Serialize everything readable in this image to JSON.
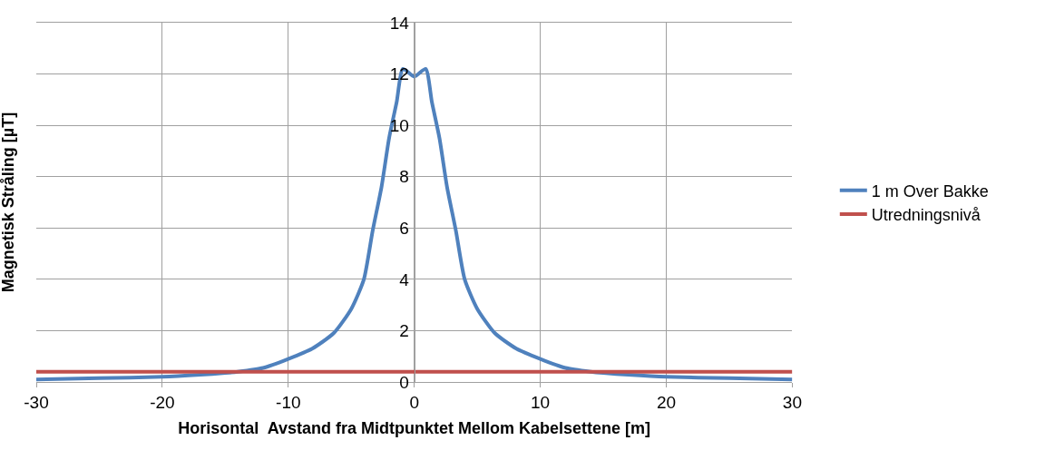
{
  "chart_data": {
    "type": "line",
    "xlabel": "Horisontal  Avstand fra Midtpunktet Mellom Kabelsettene [m]",
    "ylabel": "Magnetisk Stråling [µT]",
    "xlim": [
      -30,
      30
    ],
    "xticks": [
      -30,
      -20,
      -10,
      0,
      10,
      20,
      30
    ],
    "ylim": [
      0,
      14
    ],
    "yticks": [
      0,
      2,
      4,
      6,
      8,
      10,
      12,
      14
    ],
    "grid": true,
    "legend": "right",
    "marker": "none",
    "line_style": "solid",
    "series": [
      {
        "name": "1 m Over Bakke",
        "color": "#4f81bd",
        "x": [
          -30,
          -25,
          -20,
          -17,
          -15,
          -14,
          -12,
          -10,
          -8.1,
          -6.4,
          -5,
          -4,
          -3.3,
          -2.6,
          -2,
          -1.4,
          -0.9,
          0,
          0.9,
          1.4,
          2,
          2.6,
          3.3,
          4,
          5,
          6.4,
          8.1,
          10,
          12,
          14,
          15,
          17,
          20,
          25,
          30
        ],
        "values": [
          0.1,
          0.15,
          0.2,
          0.28,
          0.35,
          0.4,
          0.55,
          0.9,
          1.3,
          1.9,
          2.85,
          4.0,
          5.9,
          7.6,
          9.5,
          10.9,
          12.2,
          11.9,
          12.2,
          10.9,
          9.5,
          7.6,
          5.9,
          4.0,
          2.85,
          1.9,
          1.3,
          0.9,
          0.55,
          0.4,
          0.35,
          0.28,
          0.2,
          0.15,
          0.1
        ]
      },
      {
        "name": "Utredningsnivå",
        "color": "#c0504d",
        "x": [
          -30,
          30
        ],
        "values": [
          0.4,
          0.4
        ]
      }
    ]
  }
}
